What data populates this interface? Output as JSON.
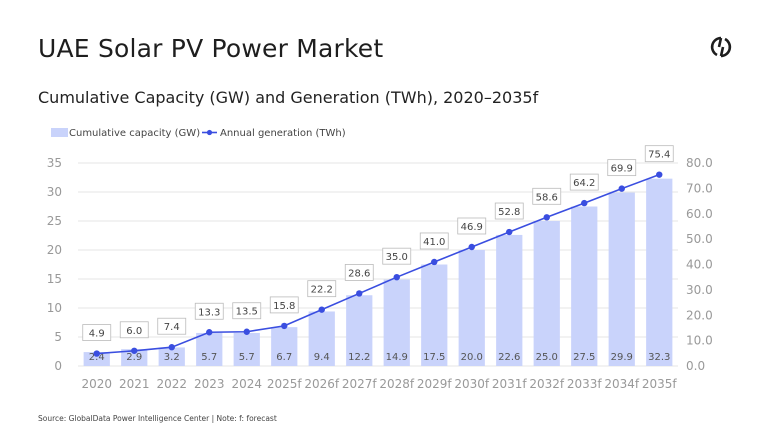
{
  "header": {
    "title": "UAE Solar PV Power Market",
    "subtitle": "Cumulative Capacity (GW) and Generation (TWh), 2020–2035f",
    "logo_icon": "globaldata-logo-icon"
  },
  "footer": {
    "source": "Source: GlobalData Power Intelligence Center | Note: f: forecast"
  },
  "colors": {
    "bar": "#c9d3fb",
    "line": "#3a4ee0",
    "grid": "#e4e4e4"
  },
  "chart_data": {
    "type": "bar+line",
    "categories": [
      "2020",
      "2021",
      "2022",
      "2023",
      "2024",
      "2025f",
      "2026f",
      "2027f",
      "2028f",
      "2029f",
      "2030f",
      "2031f",
      "2032f",
      "2033f",
      "2034f",
      "2035f"
    ],
    "series": [
      {
        "name": "Cumulative capacity (GW)",
        "type": "bar",
        "axis": "left",
        "values": [
          2.4,
          2.9,
          3.2,
          5.7,
          5.7,
          6.7,
          9.4,
          12.2,
          14.9,
          17.5,
          20.0,
          22.6,
          25.0,
          27.5,
          29.9,
          32.3
        ],
        "labels": [
          "2.4",
          "2.9",
          "3.2",
          "5.7",
          "5.7",
          "6.7",
          "9.4",
          "12.2",
          "14.9",
          "17.5",
          "20.0",
          "22.6",
          "25.0",
          "27.5",
          "29.9",
          "32.3"
        ]
      },
      {
        "name": "Annual generation (TWh)",
        "type": "line",
        "axis": "right",
        "values": [
          4.9,
          6.0,
          7.4,
          13.3,
          13.5,
          15.8,
          22.2,
          28.6,
          35.0,
          41.0,
          46.9,
          52.8,
          58.6,
          64.2,
          69.9,
          75.4
        ],
        "labels": [
          "4.9",
          "6.0",
          "7.4",
          "13.3",
          "13.5",
          "15.8",
          "22.2",
          "28.6",
          "35.0",
          "41.0",
          "46.9",
          "52.8",
          "58.6",
          "64.2",
          "69.9",
          "75.4"
        ]
      }
    ],
    "y_left": {
      "range": [
        0,
        35
      ],
      "ticks": [
        "0",
        "5",
        "10",
        "15",
        "20",
        "25",
        "30",
        "35"
      ]
    },
    "y_right": {
      "range": [
        0,
        80
      ],
      "ticks": [
        "0.0",
        "10.0",
        "20.0",
        "30.0",
        "40.0",
        "50.0",
        "60.0",
        "70.0",
        "80.0"
      ]
    },
    "grid": true,
    "legend": "top-left"
  }
}
